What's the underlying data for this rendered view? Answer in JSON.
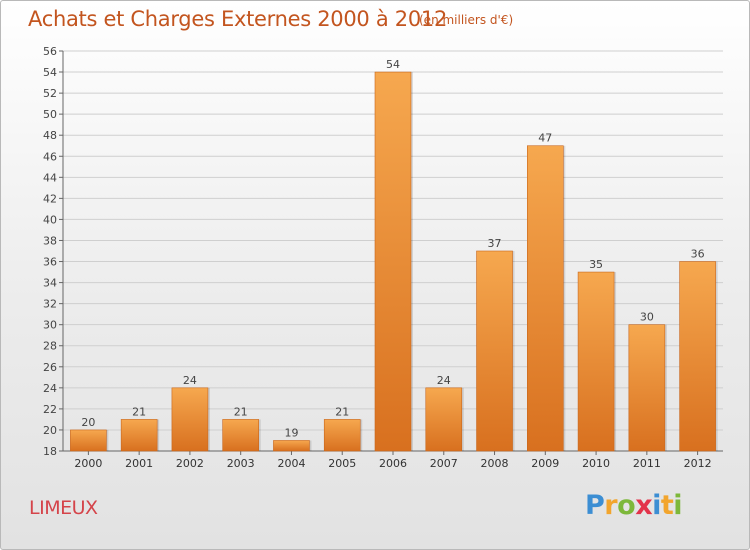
{
  "header": {
    "title": "Achats et Charges Externes 2000 à 2012",
    "subtitle": "(en milliers d'€)"
  },
  "footer": {
    "city": "LIMEUX",
    "logo": {
      "p": "P",
      "r": "r",
      "o": "o",
      "x": "x",
      "i1": "i",
      "t": "t",
      "i2": "i"
    }
  },
  "colors": {
    "title": "#c3551f",
    "city": "#d5444a",
    "bar_light": "#f6a84f",
    "bar_dark": "#d8701f"
  },
  "chart_data": {
    "type": "bar",
    "title": "Achats et Charges Externes 2000 à 2012",
    "subtitle": "(en milliers d'€)",
    "categories": [
      "2000",
      "2001",
      "2002",
      "2003",
      "2004",
      "2005",
      "2006",
      "2007",
      "2008",
      "2009",
      "2010",
      "2011",
      "2012"
    ],
    "values": [
      20,
      21,
      24,
      21,
      19,
      21,
      54,
      24,
      37,
      47,
      35,
      30,
      36
    ],
    "ylim": [
      18,
      56
    ],
    "yticks": [
      18,
      20,
      22,
      24,
      26,
      28,
      30,
      32,
      34,
      36,
      38,
      40,
      42,
      44,
      46,
      48,
      50,
      52,
      54,
      56
    ],
    "grid": true,
    "data_labels": true
  }
}
